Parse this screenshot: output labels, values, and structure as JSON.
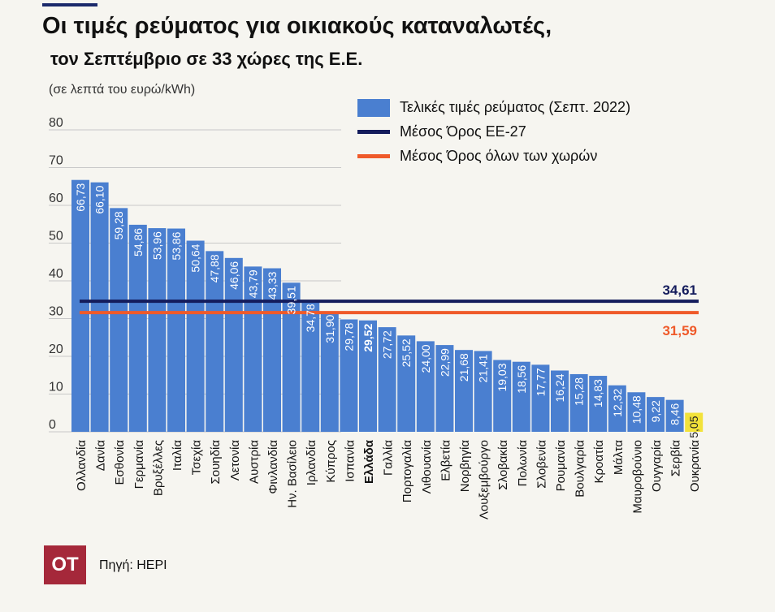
{
  "header": {
    "title": "Οι τιμές ρεύματος για οικιακούς καταναλωτές,",
    "subtitle": "τον Σεπτέμβριο σε 33 χώρες της Ε.Ε.",
    "units": "(σε λεπτά του ευρώ/kWh)"
  },
  "legend": {
    "bars": "Τελικές τιμές ρεύματος (Σεπτ. 2022)",
    "eu27": "Μέσος Όρος ΕΕ-27",
    "all": "Μέσος Όρος όλων των χωρών"
  },
  "footer": {
    "logo": "OT",
    "source": "Πηγή: HEPI"
  },
  "colors": {
    "bar": "#4a7fd0",
    "highlight_bar": "#f2e23a",
    "eu27_line": "#141c5c",
    "all_line": "#ef5a2a"
  },
  "chart_data": {
    "type": "bar",
    "ylim": [
      0,
      80
    ],
    "yticks": [
      0,
      10,
      20,
      30,
      40,
      50,
      60,
      70,
      80
    ],
    "categories": [
      "Ολλανδία",
      "Δανία",
      "Εσθονία",
      "Γερμανία",
      "Βρυξέλλες",
      "Ιταλία",
      "Τσεχία",
      "Σουηδία",
      "Λετονία",
      "Αυστρία",
      "Φινλανδία",
      "Ην. Βασίλειο",
      "Ιρλανδία",
      "Κύπρος",
      "Ισπανία",
      "Ελλάδα",
      "Γαλλία",
      "Πορτογαλία",
      "Λιθουανία",
      "Ελβετία",
      "Νορβηγία",
      "Λουξεμβούργο",
      "Σλοβακία",
      "Πολωνία",
      "Σλοβενία",
      "Ρουμανία",
      "Βουλγαρία",
      "Κροατία",
      "Μάλτα",
      "Μαυροβούνιο",
      "Ουγγαρία",
      "Σερβία",
      "Ουκρανία"
    ],
    "values": [
      66.73,
      66.1,
      59.28,
      54.86,
      53.96,
      53.86,
      50.64,
      47.88,
      46.06,
      43.79,
      43.33,
      39.51,
      34.78,
      31.9,
      29.78,
      29.52,
      27.72,
      25.52,
      24.0,
      22.99,
      21.68,
      21.41,
      19.03,
      18.56,
      17.77,
      16.24,
      15.28,
      14.83,
      12.32,
      10.48,
      9.22,
      8.46,
      5.05
    ],
    "value_labels": [
      "66,73",
      "66,10",
      "59,28",
      "54,86",
      "53,96",
      "53,86",
      "50,64",
      "47,88",
      "46,06",
      "43,79",
      "43,33",
      "39,51",
      "34,78",
      "31,90",
      "29,78",
      "29,52",
      "27,72",
      "25,52",
      "24,00",
      "22,99",
      "21,68",
      "21,41",
      "19,03",
      "18,56",
      "17,77",
      "16,24",
      "15,28",
      "14,83",
      "12,32",
      "10,48",
      "9,22",
      "8,46",
      "5,05"
    ],
    "highlight_category": "Ελλάδα",
    "highlight_bar_category": "Ουκρανία",
    "reference_lines": [
      {
        "name": "Μέσος Όρος ΕΕ-27",
        "value": 34.61,
        "label": "34,61"
      },
      {
        "name": "Μέσος Όρος όλων των χωρών",
        "value": 31.59,
        "label": "31,59"
      }
    ]
  }
}
